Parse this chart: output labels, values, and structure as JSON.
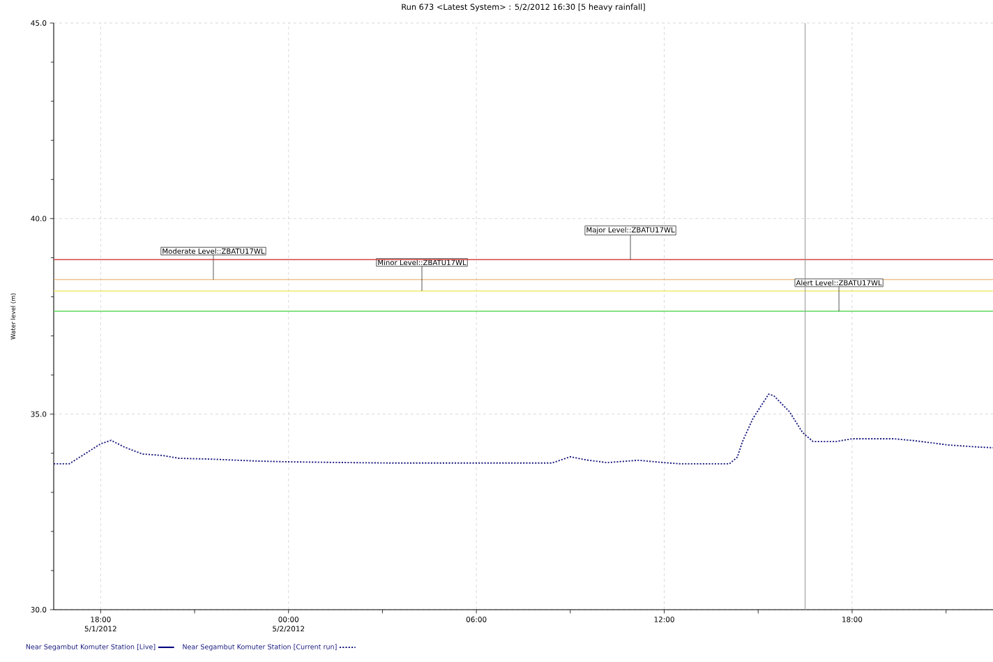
{
  "chart_data": {
    "type": "line",
    "title": "Run 673 <Latest System> :  5/2/2012 16:30   [5 heavy rainfall]",
    "ylabel": "Water level (m)",
    "xlim": [
      "2012-05-01T16:30",
      "2012-05-02T22:30"
    ],
    "ylim": [
      30,
      45
    ],
    "xticks": [
      {
        "value": "2012-05-01T18:00",
        "label": "18:00 5/1/2012"
      },
      {
        "value": "2012-05-01T21:00",
        "label": null
      },
      {
        "value": "2012-05-02T00:00",
        "label": "00:00 5/2/2012"
      },
      {
        "value": "2012-05-02T03:00",
        "label": null
      },
      {
        "value": "2012-05-02T06:00",
        "label": "06:00"
      },
      {
        "value": "2012-05-02T09:00",
        "label": null
      },
      {
        "value": "2012-05-02T12:00",
        "label": "12:00"
      },
      {
        "value": "2012-05-02T15:00",
        "label": null
      },
      {
        "value": "2012-05-02T18:00",
        "label": "18:00"
      },
      {
        "value": "2012-05-02T21:00",
        "label": null
      }
    ],
    "yticks": [
      {
        "value": 30,
        "label": "30.0"
      },
      {
        "value": 31,
        "label": null
      },
      {
        "value": 32,
        "label": null
      },
      {
        "value": 33,
        "label": null
      },
      {
        "value": 34,
        "label": null
      },
      {
        "value": 35,
        "label": "35.0"
      },
      {
        "value": 36,
        "label": null
      },
      {
        "value": 37,
        "label": null
      },
      {
        "value": 38,
        "label": null
      },
      {
        "value": 39,
        "label": null
      },
      {
        "value": 40,
        "label": "40.0"
      },
      {
        "value": 41,
        "label": null
      },
      {
        "value": 42,
        "label": null
      },
      {
        "value": 43,
        "label": null
      },
      {
        "value": 44,
        "label": null
      },
      {
        "value": 45,
        "label": "45.0"
      }
    ],
    "grid": true,
    "legend": "bottom",
    "x": [
      "2012-05-01T16:30",
      "2012-05-01T17:00",
      "2012-05-01T17:20",
      "2012-05-01T18:00",
      "2012-05-01T18:20",
      "2012-05-01T18:45",
      "2012-05-01T19:20",
      "2012-05-01T20:00",
      "2012-05-01T20:30",
      "2012-05-01T21:30",
      "2012-05-01T23:00",
      "2012-05-02T00:00",
      "2012-05-02T02:00",
      "2012-05-02T03:15",
      "2012-05-02T06:20",
      "2012-05-02T08:25",
      "2012-05-02T09:00",
      "2012-05-02T09:30",
      "2012-05-02T10:10",
      "2012-05-02T10:50",
      "2012-05-02T11:10",
      "2012-05-02T12:00",
      "2012-05-02T12:30",
      "2012-05-02T14:05",
      "2012-05-02T14:20",
      "2012-05-02T14:30",
      "2012-05-02T14:50",
      "2012-05-02T15:20",
      "2012-05-02T15:30",
      "2012-05-02T16:00",
      "2012-05-02T16:25",
      "2012-05-02T16:45",
      "2012-05-02T17:30",
      "2012-05-02T18:00",
      "2012-05-02T19:20",
      "2012-05-02T20:00",
      "2012-05-02T21:05",
      "2012-05-02T22:00",
      "2012-05-02T22:30"
    ],
    "series": [
      {
        "name": "Near Segambut Komuter Station [Live]",
        "color": "#000080",
        "line_style": "solid",
        "values": [
          null,
          null,
          null,
          null,
          null,
          null,
          null,
          null,
          null,
          null,
          null,
          null,
          null,
          null,
          null,
          null,
          null,
          null,
          null,
          null,
          null,
          null,
          null,
          null,
          null,
          null,
          null,
          null,
          null,
          null,
          null,
          null,
          null,
          null,
          null,
          null,
          null,
          null,
          null
        ]
      },
      {
        "name": "Near Segambut Komuter Station [Current run]",
        "color": "#1a1a80",
        "line_style": "dotted",
        "values": [
          33.73,
          33.73,
          33.9,
          34.24,
          34.33,
          34.16,
          33.98,
          33.94,
          33.87,
          33.85,
          33.8,
          33.78,
          33.76,
          33.75,
          33.75,
          33.75,
          33.91,
          33.83,
          33.76,
          33.8,
          33.82,
          33.76,
          33.73,
          33.73,
          33.9,
          34.3,
          34.89,
          35.51,
          35.47,
          35.06,
          34.53,
          34.3,
          34.3,
          34.37,
          34.37,
          34.32,
          34.21,
          34.16,
          34.14
        ]
      }
    ],
    "ref_lines": [
      {
        "axis": "y",
        "value": 38.44,
        "label": "Moderate Level::ZBATU17WL",
        "color": "#e09030"
      },
      {
        "axis": "y",
        "value": 38.15,
        "label": "Minor Level::ZBATU17WL",
        "color": "#f0e040"
      },
      {
        "axis": "y",
        "value": 38.95,
        "label": "Major Level::ZBATU17WL",
        "color": "#cc2020"
      },
      {
        "axis": "y",
        "value": 37.63,
        "label": "Alert Level::ZBATU17WL",
        "color": "#40d040"
      },
      {
        "axis": "x",
        "value": "2012-05-02T16:30",
        "color": "#999999"
      }
    ]
  }
}
